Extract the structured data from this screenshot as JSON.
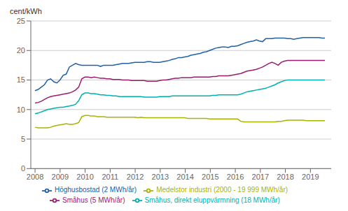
{
  "chart_data": {
    "type": "line",
    "ylabel": "cent/kWh",
    "xlim": [
      2007.83,
      2019.83
    ],
    "ylim": [
      0,
      25
    ],
    "yticks": [
      0,
      5,
      10,
      15,
      20,
      25
    ],
    "xticks": [
      2008,
      2009,
      2010,
      2011,
      2012,
      2013,
      2014,
      2015,
      2016,
      2017,
      2018,
      2019
    ],
    "grid": true,
    "legend": "bottom",
    "x": [
      2008,
      2008.1245,
      2008.249,
      2008.3735,
      2008.4981,
      2008.6226,
      2008.7471,
      2008.8716,
      2008.9961,
      2009.1206,
      2009.2452,
      2009.3697,
      2009.4942,
      2009.6187,
      2009.7432,
      2009.8677,
      2009.9923,
      2010.1168,
      2010.2413,
      2010.3658,
      2010.4903,
      2010.6148,
      2010.7394,
      2010.8639,
      2010.9884,
      2011.1129,
      2011.2374,
      2011.3619,
      2011.4865,
      2011.611,
      2011.7355,
      2011.86,
      2011.9845,
      2012.109,
      2012.2335,
      2012.3581,
      2012.4826,
      2012.6071,
      2012.7316,
      2012.8561,
      2012.9806,
      2013.1052,
      2013.2297,
      2013.3542,
      2013.4787,
      2013.6032,
      2013.7277,
      2013.8523,
      2013.9768,
      2014.1013,
      2014.2258,
      2014.3503,
      2014.4748,
      2014.5994,
      2014.7239,
      2014.8484,
      2014.9729,
      2015.0974,
      2015.2219,
      2015.3465,
      2015.471,
      2015.5955,
      2015.72,
      2015.8445,
      2015.969,
      2016.0935,
      2016.2181,
      2016.3426,
      2016.4671,
      2016.5916,
      2016.7161,
      2016.8406,
      2016.9652,
      2017.0897,
      2017.2142,
      2017.3387,
      2017.4632,
      2017.5877,
      2017.7123,
      2017.8368,
      2017.9613,
      2018.0858,
      2018.2103,
      2018.3348,
      2018.4594,
      2018.5839,
      2018.7084,
      2018.8329,
      2018.9574,
      2019.0819,
      2019.2065,
      2019.331,
      2019.4555,
      2019.58
    ],
    "series": [
      {
        "name": "Höghusbostad (2 MWh/år)",
        "color": "#2060a8",
        "values": [
          13.2,
          13.4,
          13.8,
          14.2,
          15.0,
          15.2,
          14.7,
          14.5,
          15.0,
          15.8,
          16.0,
          17.2,
          17.5,
          17.8,
          17.6,
          17.5,
          17.5,
          17.5,
          17.5,
          17.5,
          17.5,
          17.3,
          17.5,
          17.5,
          17.5,
          17.5,
          17.6,
          17.7,
          17.8,
          17.8,
          17.8,
          17.9,
          18.0,
          18.0,
          18.0,
          18.0,
          18.1,
          18.1,
          18.0,
          18.0,
          18.0,
          18.1,
          18.2,
          18.3,
          18.5,
          18.6,
          18.8,
          18.8,
          18.9,
          19.0,
          19.2,
          19.3,
          19.4,
          19.5,
          19.7,
          19.8,
          20.0,
          20.2,
          20.4,
          20.5,
          20.6,
          20.6,
          20.5,
          20.7,
          20.7,
          20.8,
          21.0,
          21.2,
          21.4,
          21.5,
          21.6,
          21.8,
          21.6,
          21.5,
          22.0,
          22.0,
          22.0,
          22.1,
          22.1,
          22.1,
          22.1,
          22.0,
          22.0,
          21.9,
          22.0,
          22.1,
          22.2,
          22.2,
          22.2,
          22.2,
          22.2,
          22.2,
          22.1,
          22.1
        ]
      },
      {
        "name": "Småhus (5 MWh/år)",
        "color": "#9b1b6e",
        "values": [
          11.1,
          11.2,
          11.4,
          11.7,
          12.0,
          12.2,
          12.3,
          12.4,
          12.5,
          12.6,
          12.7,
          12.8,
          13.0,
          13.3,
          13.8,
          15.2,
          15.5,
          15.5,
          15.4,
          15.5,
          15.4,
          15.3,
          15.3,
          15.2,
          15.2,
          15.1,
          15.1,
          15.1,
          15.0,
          15.0,
          15.0,
          14.9,
          14.9,
          14.9,
          14.9,
          14.9,
          14.8,
          14.8,
          14.8,
          14.8,
          14.9,
          15.0,
          15.0,
          15.1,
          15.2,
          15.3,
          15.3,
          15.4,
          15.4,
          15.4,
          15.4,
          15.5,
          15.5,
          15.5,
          15.5,
          15.5,
          15.5,
          15.6,
          15.6,
          15.7,
          15.7,
          15.7,
          15.7,
          15.8,
          15.9,
          16.0,
          16.1,
          16.3,
          16.5,
          16.6,
          16.7,
          16.8,
          17.0,
          17.2,
          17.5,
          17.8,
          18.0,
          17.8,
          17.5,
          18.0,
          18.2,
          18.3,
          18.3,
          18.3,
          18.3,
          18.3,
          18.3,
          18.3,
          18.3,
          18.3,
          18.3,
          18.3,
          18.3,
          18.3
        ]
      },
      {
        "name": "Småhus, direkt eluppvärmning (18 MWh/år)",
        "color": "#00b0b0",
        "values": [
          9.3,
          9.4,
          9.6,
          9.8,
          10.0,
          10.1,
          10.2,
          10.3,
          10.4,
          10.4,
          10.5,
          10.6,
          10.7,
          10.9,
          11.5,
          12.5,
          12.8,
          12.8,
          12.7,
          12.7,
          12.6,
          12.5,
          12.5,
          12.4,
          12.4,
          12.3,
          12.3,
          12.2,
          12.2,
          12.2,
          12.2,
          12.2,
          12.2,
          12.2,
          12.2,
          12.1,
          12.1,
          12.1,
          12.1,
          12.1,
          12.2,
          12.2,
          12.2,
          12.2,
          12.3,
          12.3,
          12.3,
          12.3,
          12.3,
          12.3,
          12.3,
          12.3,
          12.3,
          12.3,
          12.3,
          12.3,
          12.3,
          12.4,
          12.4,
          12.5,
          12.5,
          12.5,
          12.5,
          12.5,
          12.5,
          12.5,
          12.6,
          12.8,
          13.0,
          13.1,
          13.2,
          13.3,
          13.4,
          13.5,
          13.6,
          13.8,
          14.0,
          14.2,
          14.5,
          14.7,
          14.9,
          15.0,
          15.0,
          15.0,
          15.0,
          15.0,
          15.0,
          15.0,
          15.0,
          15.0,
          15.0,
          15.0,
          15.0,
          15.0
        ]
      },
      {
        "name": "Medelstor industri (2000 - 19 999 MWh/år)",
        "color": "#a8b400",
        "values": [
          7.0,
          6.9,
          6.9,
          6.9,
          6.9,
          7.0,
          7.2,
          7.3,
          7.4,
          7.5,
          7.6,
          7.5,
          7.5,
          7.6,
          7.8,
          8.8,
          9.0,
          9.0,
          8.9,
          8.9,
          8.8,
          8.8,
          8.8,
          8.7,
          8.7,
          8.7,
          8.7,
          8.7,
          8.7,
          8.7,
          8.7,
          8.7,
          8.7,
          8.6,
          8.7,
          8.6,
          8.6,
          8.6,
          8.6,
          8.6,
          8.6,
          8.6,
          8.6,
          8.6,
          8.6,
          8.6,
          8.6,
          8.6,
          8.6,
          8.5,
          8.5,
          8.5,
          8.5,
          8.5,
          8.5,
          8.5,
          8.4,
          8.4,
          8.4,
          8.4,
          8.4,
          8.4,
          8.4,
          8.4,
          8.4,
          8.4,
          8.0,
          7.9,
          7.9,
          7.9,
          7.9,
          7.9,
          7.9,
          7.9,
          7.9,
          7.9,
          7.9,
          7.9,
          8.0,
          8.0,
          8.1,
          8.2,
          8.2,
          8.2,
          8.2,
          8.2,
          8.2,
          8.1,
          8.1,
          8.1,
          8.1,
          8.1,
          8.1,
          8.1
        ]
      }
    ]
  }
}
